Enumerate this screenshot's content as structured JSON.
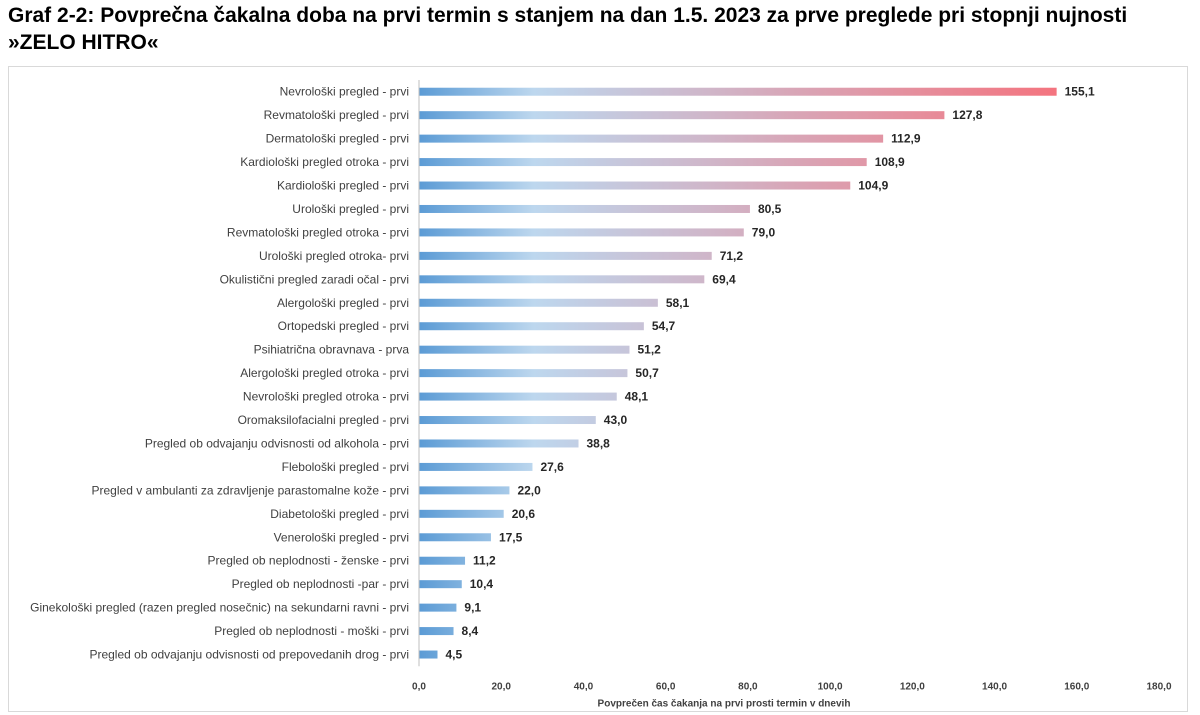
{
  "title": "Graf 2-2: Povprečna čakalna doba na prvi termin s stanjem na dan 1.5. 2023 za prve preglede pri stopnji nujnosti »ZELO HITRO«",
  "colors": {
    "bar_start": "#5b9bd5",
    "bar_mid": "#bdd7ee",
    "bar_end": "#f4737e",
    "axis": "#bfbfbf"
  },
  "chart_data": {
    "type": "bar",
    "orientation": "horizontal",
    "title": "Graf 2-2: Povprečna čakalna doba na prvi termin s stanjem na dan 1.5. 2023 za prve preglede pri stopnji nujnosti »ZELO HITRO«",
    "xlabel": "Povprečen čas čakanja na prvi prosti termin v dnevih",
    "ylabel": "",
    "xlim": [
      0,
      180
    ],
    "xticks": [
      "0,0",
      "20,0",
      "40,0",
      "60,0",
      "80,0",
      "100,0",
      "120,0",
      "140,0",
      "160,0",
      "180,0"
    ],
    "grid": false,
    "categories": [
      "Nevrološki pregled - prvi",
      "Revmatološki pregled - prvi",
      "Dermatološki pregled - prvi",
      "Kardiološki pregled otroka - prvi",
      "Kardiološki pregled - prvi",
      "Urološki pregled - prvi",
      "Revmatološki pregled otroka - prvi",
      "Urološki pregled otroka- prvi",
      "Okulistični pregled zaradi očal - prvi",
      "Alergološki pregled - prvi",
      "Ortopedski pregled - prvi",
      "Psihiatrična obravnava  - prva",
      "Alergološki pregled otroka - prvi",
      "Nevrološki pregled otroka - prvi",
      "Oromaksilofacialni pregled - prvi",
      "Pregled ob odvajanju odvisnosti od alkohola - prvi",
      "Flebološki pregled - prvi",
      "Pregled v ambulanti za zdravljenje parastomalne kože - prvi",
      "Diabetološki pregled - prvi",
      "Venerološki pregled - prvi",
      "Pregled ob neplodnosti - ženske - prvi",
      "Pregled ob neplodnosti -par - prvi",
      "Ginekološki pregled (razen pregled nosečnic) na sekundarni ravni - prvi",
      "Pregled ob neplodnosti - moški - prvi",
      "Pregled ob odvajanju odvisnosti od prepovedanih drog - prvi"
    ],
    "values": [
      155.1,
      127.8,
      112.9,
      108.9,
      104.9,
      80.5,
      79.0,
      71.2,
      69.4,
      58.1,
      54.7,
      51.2,
      50.7,
      48.1,
      43.0,
      38.8,
      27.6,
      22.0,
      20.6,
      17.5,
      11.2,
      10.4,
      9.1,
      8.4,
      4.5
    ],
    "value_labels": [
      "155,1",
      "127,8",
      "112,9",
      "108,9",
      "104,9",
      "80,5",
      "79,0",
      "71,2",
      "69,4",
      "58,1",
      "54,7",
      "51,2",
      "50,7",
      "48,1",
      "43,0",
      "38,8",
      "27,6",
      "22,0",
      "20,6",
      "17,5",
      "11,2",
      "10,4",
      "9,1",
      "8,4",
      "4,5"
    ]
  }
}
